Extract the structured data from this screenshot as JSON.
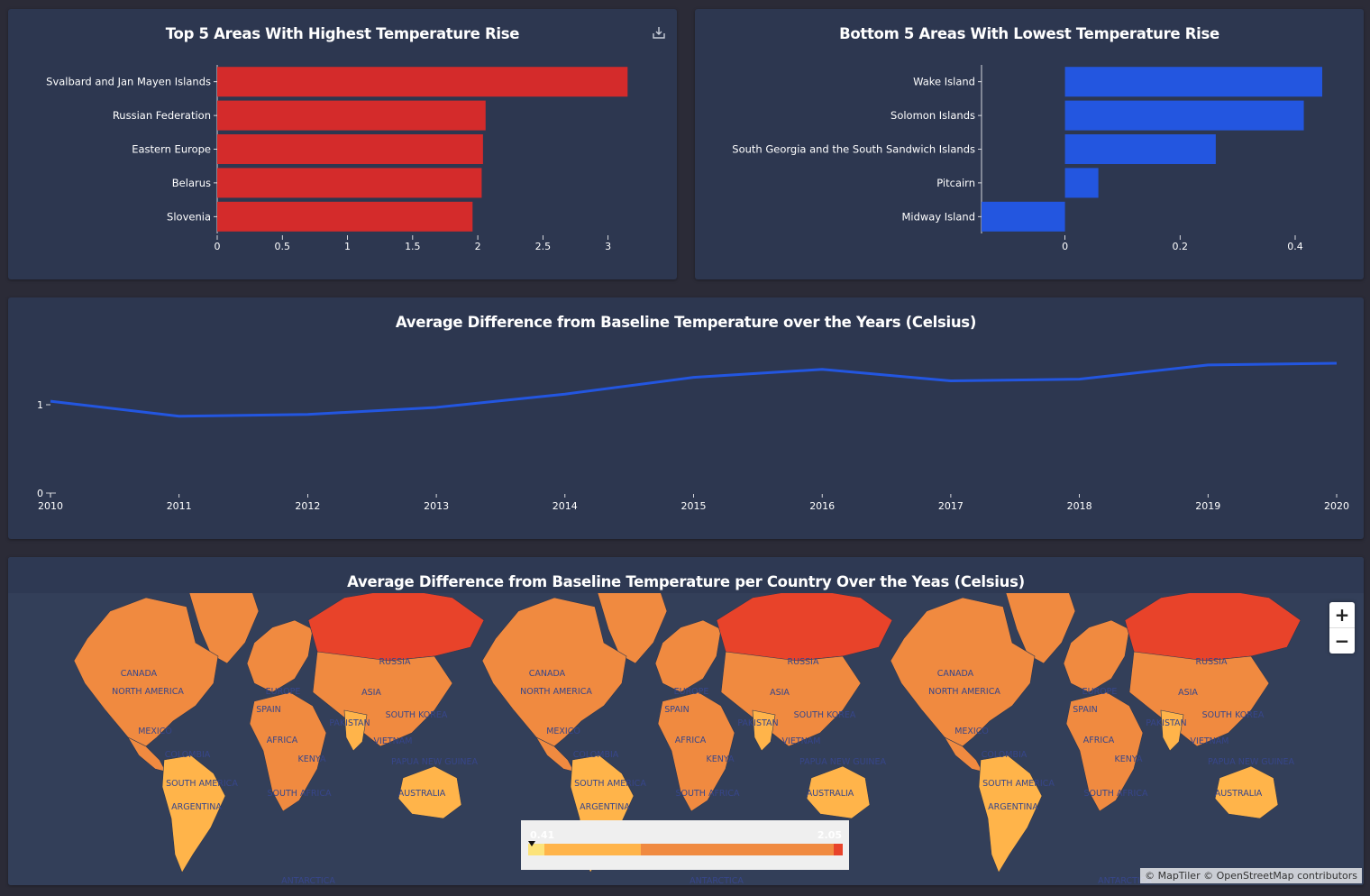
{
  "top_chart": {
    "title": "Top 5 Areas With Highest Temperature Rise",
    "download_icon": "download-icon",
    "color": "#d42b2b"
  },
  "bottom_chart": {
    "title": "Bottom 5 Areas With Lowest Temperature Rise",
    "color": "#2356e0"
  },
  "line_chart": {
    "title": "Average Difference from Baseline Temperature over the Years (Celsius)",
    "color": "#2356e0"
  },
  "map": {
    "title": "Average Difference from Baseline Temperature per Country Over the Yeas (Celsius)",
    "zoom_in_label": "+",
    "zoom_out_label": "−",
    "legend_min": "0.41",
    "legend_max": "2.05",
    "attribution": "© MapTiler © OpenStreetMap contributors",
    "colors": {
      "ocean": "#333f59",
      "low": "#fce37a",
      "mid": "#ffb44a",
      "high": "#f08a40",
      "max": "#e8432a"
    },
    "labels": [
      "CANADA",
      "NORTH AMERICA",
      "RUSSIA",
      "EUROPE",
      "ASIA",
      "SPAIN",
      "PAKISTAN",
      "SOUTH KOREA",
      "MEXICO",
      "AFRICA",
      "VIETNAM",
      "COLOMBIA",
      "KENYA",
      "PAPUA NEW GUINEA",
      "SOUTH AMERICA",
      "SOUTH AFRICA",
      "AUSTRALIA",
      "ARGENTINA",
      "ANTARCTICA"
    ]
  },
  "chart_data": [
    {
      "type": "bar",
      "orientation": "horizontal",
      "title": "Top 5 Areas With Highest Temperature Rise",
      "categories": [
        "Svalbard and Jan Mayen Islands",
        "Russian Federation",
        "Eastern Europe",
        "Belarus",
        "Slovenia"
      ],
      "values": [
        3.15,
        2.06,
        2.04,
        2.03,
        1.96
      ],
      "xlim": [
        0,
        3.3
      ],
      "xticks": [
        "0",
        "0.5",
        "1",
        "1.5",
        "2",
        "2.5",
        "3"
      ],
      "grid": false
    },
    {
      "type": "bar",
      "orientation": "horizontal",
      "title": "Bottom 5 Areas With Lowest Temperature Rise",
      "categories": [
        "Wake Island",
        "Solomon Islands",
        "South Georgia and the South Sandwich Islands",
        "Pitcairn",
        "Midway Island"
      ],
      "values": [
        0.447,
        0.415,
        0.262,
        0.058,
        -0.145
      ],
      "xlim": [
        -0.145,
        0.447
      ],
      "xticks": [
        "0",
        "0.2",
        "0.4"
      ],
      "grid": false
    },
    {
      "type": "line",
      "title": "Average Difference from Baseline Temperature over the Years (Celsius)",
      "x": [
        2010,
        2011,
        2012,
        2013,
        2014,
        2015,
        2016,
        2017,
        2018,
        2019,
        2020
      ],
      "series": [
        {
          "values": [
            1.04,
            0.87,
            0.89,
            0.97,
            1.12,
            1.31,
            1.4,
            1.27,
            1.29,
            1.45,
            1.47
          ]
        }
      ],
      "ylim": [
        0,
        2
      ],
      "yticks": [
        "0",
        "1"
      ],
      "xticks": [
        "2010",
        "2011",
        "2012",
        "2013",
        "2014",
        "2015",
        "2016",
        "2017",
        "2018",
        "2019",
        "2020"
      ],
      "grid": false
    }
  ]
}
